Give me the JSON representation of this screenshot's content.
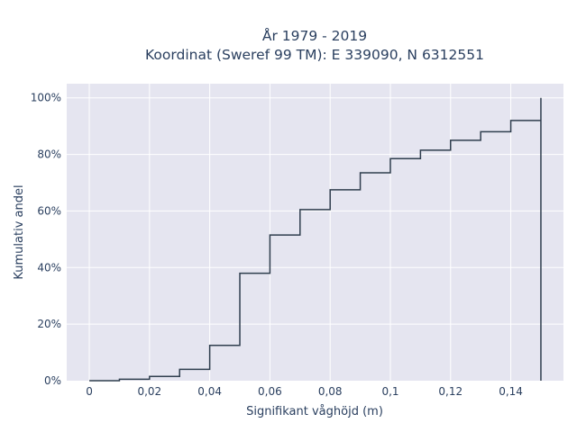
{
  "chart_data": {
    "type": "line",
    "subtype": "cumulative-step",
    "title": "År 1979 - 2019",
    "subtitle": "Koordinat (Sweref 99 TM): E 339090, N 6312551",
    "xlabel": "Signifikant våghöjd (m)",
    "ylabel": "Kumulativ andel",
    "xlim": [
      -0.0075,
      0.1575
    ],
    "ylim": [
      0,
      1.05
    ],
    "x_ticks": [
      0,
      0.02,
      0.04,
      0.06,
      0.08,
      0.1,
      0.12,
      0.14
    ],
    "x_tick_labels": [
      "0",
      "0,02",
      "0,04",
      "0,06",
      "0,08",
      "0,1",
      "0,12",
      "0,14"
    ],
    "y_ticks": [
      0,
      0.2,
      0.4,
      0.6,
      0.8,
      1.0
    ],
    "y_tick_labels": [
      "0%",
      "20%",
      "40%",
      "60%",
      "80%",
      "100%"
    ],
    "grid": true,
    "series": [
      {
        "color": "#2f3e4e",
        "x": [
          0,
          0.01,
          0.02,
          0.03,
          0.04,
          0.05,
          0.06,
          0.07,
          0.08,
          0.09,
          0.1,
          0.11,
          0.12,
          0.13,
          0.14,
          0.15
        ],
        "y": [
          0.0,
          0.005,
          0.015,
          0.04,
          0.125,
          0.38,
          0.515,
          0.605,
          0.675,
          0.735,
          0.785,
          0.815,
          0.85,
          0.88,
          0.92,
          1.0
        ]
      }
    ]
  },
  "colors": {
    "plot_background": "#e5e5f0",
    "grid": "#ffffff",
    "text": "#2a3f5f"
  }
}
